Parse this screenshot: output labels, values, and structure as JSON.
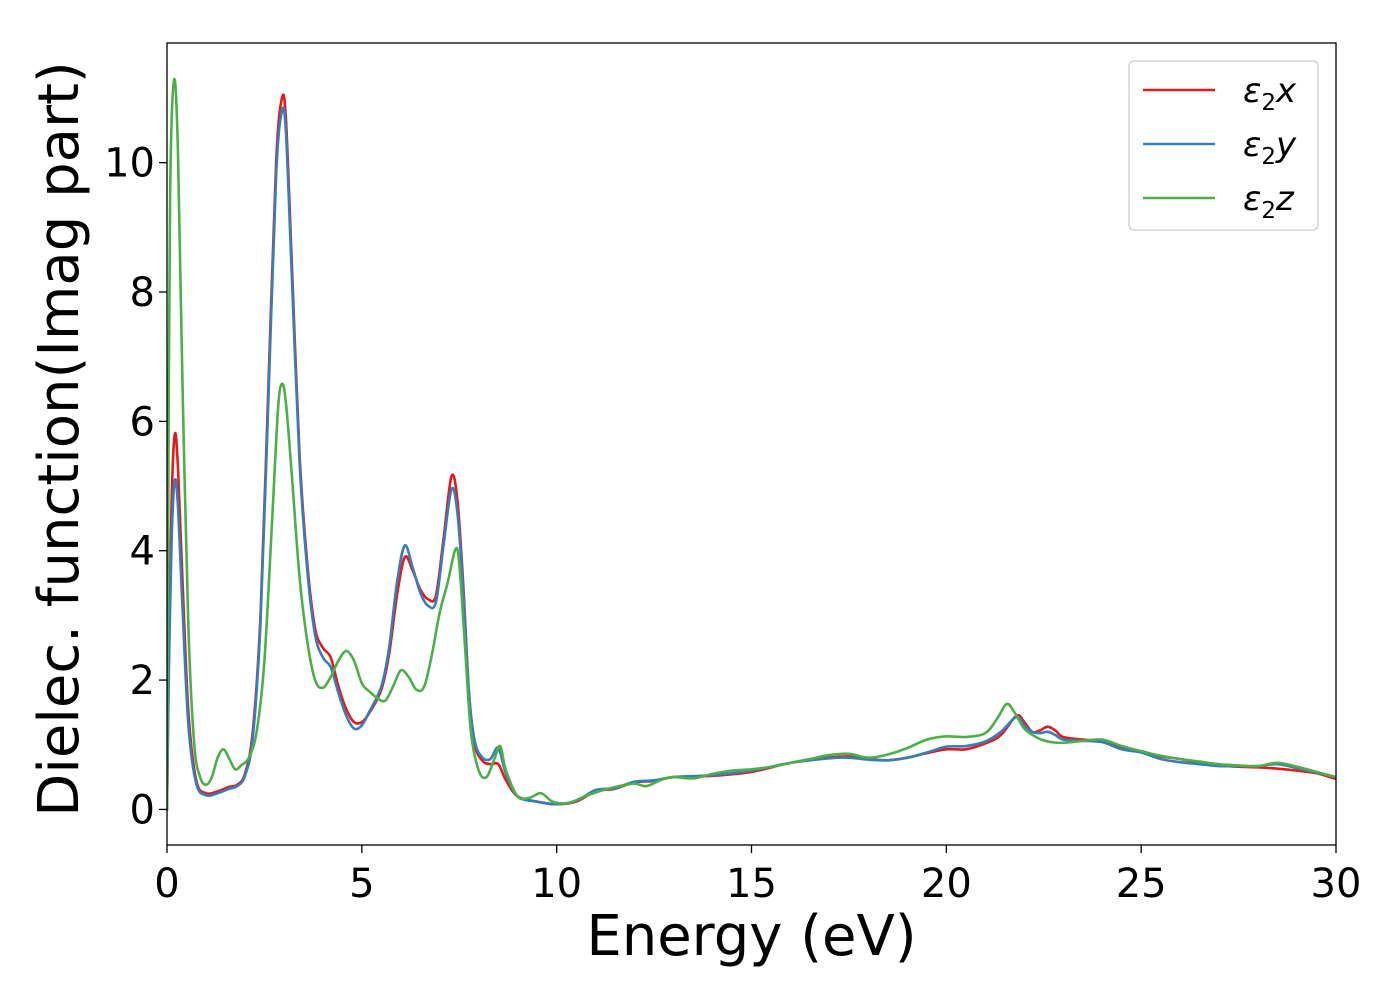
{
  "chart_data": {
    "type": "line",
    "title": "",
    "xlabel": "Energy (eV)",
    "ylabel": "Dielec. function(Imag part)",
    "xlim": [
      0,
      30
    ],
    "ylim": [
      -0.55,
      11.85
    ],
    "xticks": [
      0,
      5,
      10,
      15,
      20,
      25,
      30
    ],
    "yticks": [
      0,
      2,
      4,
      6,
      8,
      10
    ],
    "grid": false,
    "legend_position": "top-right",
    "series": [
      {
        "name": "ε₂x",
        "legend": {
          "base": "ε",
          "sub": "2",
          "suffix": "x"
        },
        "color": "#e41a1c",
        "points": [
          [
            0,
            0
          ],
          [
            0.05,
            2.5
          ],
          [
            0.12,
            4.8
          ],
          [
            0.2,
            5.8
          ],
          [
            0.28,
            5.3
          ],
          [
            0.4,
            3.5
          ],
          [
            0.55,
            1.5
          ],
          [
            0.75,
            0.45
          ],
          [
            1.0,
            0.25
          ],
          [
            1.3,
            0.28
          ],
          [
            1.6,
            0.35
          ],
          [
            1.8,
            0.38
          ],
          [
            2.0,
            0.55
          ],
          [
            2.2,
            1.2
          ],
          [
            2.4,
            3.0
          ],
          [
            2.6,
            6.5
          ],
          [
            2.8,
            10.0
          ],
          [
            2.95,
            11.0
          ],
          [
            3.05,
            10.7
          ],
          [
            3.2,
            8.5
          ],
          [
            3.4,
            5.5
          ],
          [
            3.6,
            3.8
          ],
          [
            3.8,
            2.8
          ],
          [
            4.0,
            2.5
          ],
          [
            4.2,
            2.35
          ],
          [
            4.4,
            1.9
          ],
          [
            4.6,
            1.55
          ],
          [
            4.8,
            1.35
          ],
          [
            5.0,
            1.35
          ],
          [
            5.2,
            1.5
          ],
          [
            5.5,
            1.85
          ],
          [
            5.7,
            2.4
          ],
          [
            5.9,
            3.3
          ],
          [
            6.1,
            3.9
          ],
          [
            6.3,
            3.7
          ],
          [
            6.5,
            3.4
          ],
          [
            6.7,
            3.25
          ],
          [
            6.9,
            3.3
          ],
          [
            7.1,
            4.2
          ],
          [
            7.3,
            5.15
          ],
          [
            7.45,
            4.8
          ],
          [
            7.6,
            3.5
          ],
          [
            7.75,
            1.8
          ],
          [
            7.9,
            1.0
          ],
          [
            8.1,
            0.75
          ],
          [
            8.3,
            0.7
          ],
          [
            8.5,
            0.7
          ],
          [
            8.7,
            0.45
          ],
          [
            9.0,
            0.2
          ],
          [
            9.5,
            0.12
          ],
          [
            10.0,
            0.08
          ],
          [
            10.5,
            0.12
          ],
          [
            11.0,
            0.28
          ],
          [
            11.5,
            0.32
          ],
          [
            12.0,
            0.42
          ],
          [
            12.5,
            0.44
          ],
          [
            13.0,
            0.5
          ],
          [
            14.0,
            0.52
          ],
          [
            15.0,
            0.58
          ],
          [
            16.0,
            0.72
          ],
          [
            17.0,
            0.8
          ],
          [
            17.5,
            0.82
          ],
          [
            18.0,
            0.78
          ],
          [
            18.5,
            0.76
          ],
          [
            19.0,
            0.8
          ],
          [
            19.5,
            0.87
          ],
          [
            20.0,
            0.93
          ],
          [
            20.5,
            0.93
          ],
          [
            21.0,
            1.02
          ],
          [
            21.4,
            1.15
          ],
          [
            21.8,
            1.45
          ],
          [
            22.0,
            1.35
          ],
          [
            22.2,
            1.2
          ],
          [
            22.4,
            1.22
          ],
          [
            22.6,
            1.28
          ],
          [
            22.8,
            1.22
          ],
          [
            23.0,
            1.12
          ],
          [
            23.5,
            1.08
          ],
          [
            24.0,
            1.05
          ],
          [
            24.5,
            0.95
          ],
          [
            25.0,
            0.9
          ],
          [
            25.5,
            0.82
          ],
          [
            26.0,
            0.78
          ],
          [
            26.5,
            0.72
          ],
          [
            27.0,
            0.68
          ],
          [
            27.5,
            0.66
          ],
          [
            28.0,
            0.65
          ],
          [
            28.5,
            0.63
          ],
          [
            29.0,
            0.6
          ],
          [
            29.5,
            0.56
          ],
          [
            30.0,
            0.47
          ]
        ]
      },
      {
        "name": "ε₂y",
        "legend": {
          "base": "ε",
          "sub": "2",
          "suffix": "y"
        },
        "color": "#377eb8",
        "points": [
          [
            0,
            0
          ],
          [
            0.05,
            2.2
          ],
          [
            0.12,
            4.2
          ],
          [
            0.2,
            5.08
          ],
          [
            0.28,
            4.7
          ],
          [
            0.4,
            3.1
          ],
          [
            0.55,
            1.3
          ],
          [
            0.75,
            0.4
          ],
          [
            1.0,
            0.22
          ],
          [
            1.3,
            0.25
          ],
          [
            1.6,
            0.32
          ],
          [
            1.8,
            0.36
          ],
          [
            2.0,
            0.52
          ],
          [
            2.2,
            1.1
          ],
          [
            2.4,
            2.9
          ],
          [
            2.6,
            6.3
          ],
          [
            2.8,
            9.8
          ],
          [
            2.95,
            10.8
          ],
          [
            3.05,
            10.5
          ],
          [
            3.2,
            8.3
          ],
          [
            3.4,
            5.4
          ],
          [
            3.6,
            3.7
          ],
          [
            3.8,
            2.7
          ],
          [
            4.0,
            2.35
          ],
          [
            4.2,
            2.2
          ],
          [
            4.4,
            1.8
          ],
          [
            4.6,
            1.45
          ],
          [
            4.8,
            1.25
          ],
          [
            5.0,
            1.3
          ],
          [
            5.2,
            1.52
          ],
          [
            5.5,
            1.9
          ],
          [
            5.7,
            2.5
          ],
          [
            5.9,
            3.5
          ],
          [
            6.1,
            4.08
          ],
          [
            6.3,
            3.75
          ],
          [
            6.5,
            3.35
          ],
          [
            6.7,
            3.15
          ],
          [
            6.9,
            3.2
          ],
          [
            7.1,
            4.1
          ],
          [
            7.3,
            4.95
          ],
          [
            7.45,
            4.6
          ],
          [
            7.6,
            3.4
          ],
          [
            7.75,
            1.8
          ],
          [
            7.9,
            1.05
          ],
          [
            8.1,
            0.8
          ],
          [
            8.3,
            0.78
          ],
          [
            8.5,
            0.95
          ],
          [
            8.7,
            0.55
          ],
          [
            9.0,
            0.2
          ],
          [
            9.5,
            0.12
          ],
          [
            10.0,
            0.08
          ],
          [
            10.5,
            0.13
          ],
          [
            11.0,
            0.3
          ],
          [
            11.5,
            0.33
          ],
          [
            12.0,
            0.43
          ],
          [
            12.5,
            0.45
          ],
          [
            13.0,
            0.5
          ],
          [
            14.0,
            0.53
          ],
          [
            15.0,
            0.6
          ],
          [
            16.0,
            0.72
          ],
          [
            17.0,
            0.79
          ],
          [
            17.5,
            0.8
          ],
          [
            18.0,
            0.77
          ],
          [
            18.5,
            0.76
          ],
          [
            19.0,
            0.8
          ],
          [
            19.5,
            0.88
          ],
          [
            20.0,
            0.97
          ],
          [
            20.5,
            0.98
          ],
          [
            21.0,
            1.05
          ],
          [
            21.4,
            1.2
          ],
          [
            21.8,
            1.43
          ],
          [
            22.0,
            1.3
          ],
          [
            22.2,
            1.2
          ],
          [
            22.4,
            1.18
          ],
          [
            22.6,
            1.2
          ],
          [
            22.8,
            1.15
          ],
          [
            23.0,
            1.08
          ],
          [
            23.5,
            1.06
          ],
          [
            24.0,
            1.04
          ],
          [
            24.5,
            0.93
          ],
          [
            25.0,
            0.88
          ],
          [
            25.5,
            0.78
          ],
          [
            26.0,
            0.73
          ],
          [
            26.5,
            0.7
          ],
          [
            27.0,
            0.67
          ],
          [
            27.5,
            0.67
          ],
          [
            28.0,
            0.67
          ],
          [
            28.5,
            0.7
          ],
          [
            29.0,
            0.64
          ],
          [
            29.5,
            0.57
          ],
          [
            30.0,
            0.5
          ]
        ]
      },
      {
        "name": "ε₂z",
        "legend": {
          "base": "ε",
          "sub": "2",
          "suffix": "z"
        },
        "color": "#4daf4a",
        "points": [
          [
            0,
            0
          ],
          [
            0.03,
            4.5
          ],
          [
            0.08,
            9.5
          ],
          [
            0.18,
            11.28
          ],
          [
            0.28,
            10.2
          ],
          [
            0.4,
            6.5
          ],
          [
            0.55,
            2.8
          ],
          [
            0.7,
            1.0
          ],
          [
            0.85,
            0.5
          ],
          [
            1.0,
            0.38
          ],
          [
            1.15,
            0.5
          ],
          [
            1.3,
            0.8
          ],
          [
            1.45,
            0.93
          ],
          [
            1.6,
            0.78
          ],
          [
            1.75,
            0.62
          ],
          [
            1.9,
            0.68
          ],
          [
            2.1,
            0.8
          ],
          [
            2.3,
            1.2
          ],
          [
            2.5,
            2.3
          ],
          [
            2.7,
            4.5
          ],
          [
            2.85,
            6.2
          ],
          [
            2.95,
            6.58
          ],
          [
            3.05,
            6.3
          ],
          [
            3.2,
            5.2
          ],
          [
            3.4,
            3.6
          ],
          [
            3.6,
            2.6
          ],
          [
            3.8,
            2.0
          ],
          [
            4.0,
            1.88
          ],
          [
            4.2,
            2.05
          ],
          [
            4.4,
            2.3
          ],
          [
            4.6,
            2.45
          ],
          [
            4.8,
            2.3
          ],
          [
            5.0,
            1.95
          ],
          [
            5.2,
            1.82
          ],
          [
            5.4,
            1.72
          ],
          [
            5.6,
            1.68
          ],
          [
            5.8,
            1.9
          ],
          [
            6.0,
            2.15
          ],
          [
            6.2,
            2.05
          ],
          [
            6.4,
            1.85
          ],
          [
            6.6,
            1.9
          ],
          [
            6.8,
            2.4
          ],
          [
            7.0,
            3.05
          ],
          [
            7.2,
            3.5
          ],
          [
            7.4,
            4.02
          ],
          [
            7.5,
            3.8
          ],
          [
            7.65,
            2.5
          ],
          [
            7.8,
            1.2
          ],
          [
            8.0,
            0.6
          ],
          [
            8.2,
            0.5
          ],
          [
            8.4,
            0.78
          ],
          [
            8.55,
            0.98
          ],
          [
            8.7,
            0.6
          ],
          [
            9.0,
            0.2
          ],
          [
            9.3,
            0.18
          ],
          [
            9.6,
            0.25
          ],
          [
            9.9,
            0.12
          ],
          [
            10.3,
            0.1
          ],
          [
            10.8,
            0.22
          ],
          [
            11.2,
            0.3
          ],
          [
            11.6,
            0.36
          ],
          [
            12.0,
            0.4
          ],
          [
            12.3,
            0.36
          ],
          [
            12.7,
            0.46
          ],
          [
            13.0,
            0.5
          ],
          [
            13.5,
            0.48
          ],
          [
            14.0,
            0.55
          ],
          [
            14.5,
            0.6
          ],
          [
            15.0,
            0.62
          ],
          [
            15.5,
            0.66
          ],
          [
            16.0,
            0.72
          ],
          [
            16.5,
            0.78
          ],
          [
            17.0,
            0.84
          ],
          [
            17.5,
            0.86
          ],
          [
            18.0,
            0.8
          ],
          [
            18.5,
            0.85
          ],
          [
            19.0,
            0.95
          ],
          [
            19.5,
            1.08
          ],
          [
            20.0,
            1.13
          ],
          [
            20.5,
            1.12
          ],
          [
            21.0,
            1.18
          ],
          [
            21.3,
            1.4
          ],
          [
            21.55,
            1.63
          ],
          [
            21.75,
            1.5
          ],
          [
            22.0,
            1.25
          ],
          [
            22.3,
            1.12
          ],
          [
            22.6,
            1.05
          ],
          [
            23.0,
            1.03
          ],
          [
            23.5,
            1.06
          ],
          [
            24.0,
            1.08
          ],
          [
            24.5,
            0.98
          ],
          [
            25.0,
            0.9
          ],
          [
            25.5,
            0.83
          ],
          [
            26.0,
            0.78
          ],
          [
            26.5,
            0.74
          ],
          [
            27.0,
            0.7
          ],
          [
            27.5,
            0.68
          ],
          [
            28.0,
            0.67
          ],
          [
            28.5,
            0.72
          ],
          [
            29.0,
            0.66
          ],
          [
            29.5,
            0.58
          ],
          [
            30.0,
            0.5
          ]
        ]
      }
    ]
  }
}
